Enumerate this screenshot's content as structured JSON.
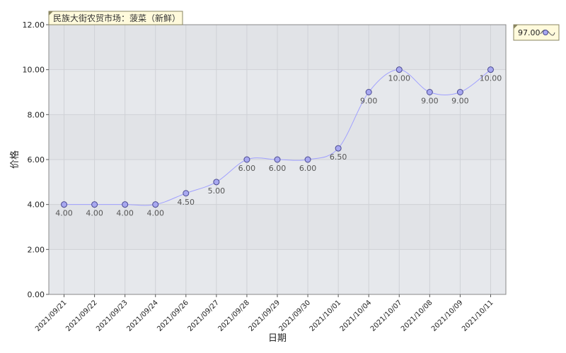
{
  "chart_data": {
    "type": "line",
    "title": "民族大街农贸市场：菠菜（新鲜）",
    "xlabel": "日期",
    "ylabel": "价格",
    "categories": [
      "2021/09/21",
      "2021/09/22",
      "2021/09/23",
      "2021/09/24",
      "2021/09/26",
      "2021/09/27",
      "2021/09/28",
      "2021/09/29",
      "2021/09/30",
      "2021/10/01",
      "2021/10/04",
      "2021/10/07",
      "2021/10/08",
      "2021/10/09",
      "2021/10/11"
    ],
    "values": [
      4.0,
      4.0,
      4.0,
      4.0,
      4.5,
      5.0,
      6.0,
      6.0,
      6.0,
      6.5,
      9.0,
      10.0,
      9.0,
      9.0,
      10.0
    ],
    "value_labels": [
      "4.00",
      "4.00",
      "4.00",
      "4.00",
      "4.50",
      "5.00",
      "6.00",
      "6.00",
      "6.00",
      "6.50",
      "9.00",
      "10.00",
      "9.00",
      "9.00",
      "10.00"
    ],
    "ylim": [
      0,
      12
    ],
    "yticks": [
      "0.00",
      "2.00",
      "4.00",
      "6.00",
      "8.00",
      "10.00",
      "12.00"
    ],
    "grid": true,
    "smooth": true,
    "legend": {
      "placement": "top-right",
      "label": "97.00"
    },
    "colors": {
      "line": "#a0a0ff",
      "marker_fill": "#a8a8f0",
      "marker_stroke": "#4a4a90",
      "plot_bg": "#e6e8ec",
      "band_bg": "#e1e3e7",
      "title_bg": "#fffadc"
    }
  }
}
